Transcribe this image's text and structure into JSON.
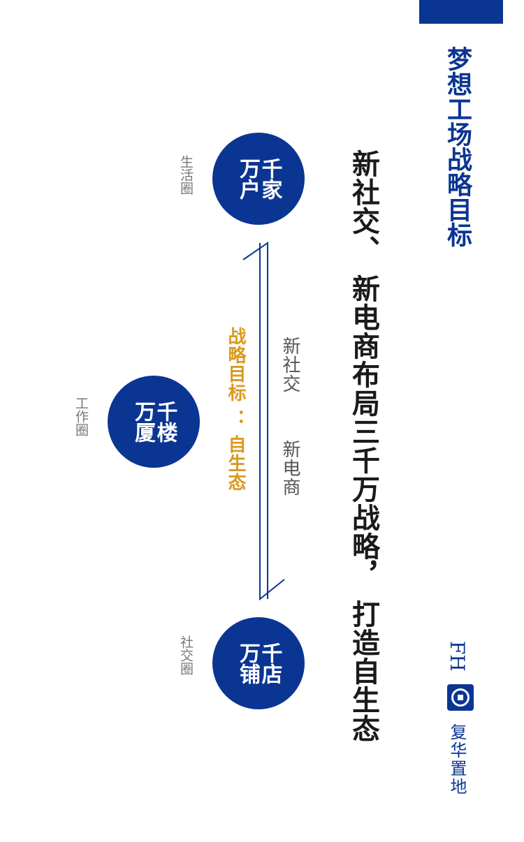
{
  "header": {
    "title": "梦想工场战略目标",
    "subtitle": "新社交、 新电商布局三千万战略， 打造自生态"
  },
  "circles": {
    "top": {
      "label": "千家万户",
      "caption": "生活圈"
    },
    "middle": {
      "label": "千楼万厦",
      "caption": "工作圈"
    },
    "bottom": {
      "label": "千店万铺",
      "caption": "社交圈"
    }
  },
  "arrow": {
    "label_left": "新社交",
    "label_right": "新电商",
    "goal": "战略目标 ： 自生态"
  },
  "logo": {
    "letters": "FH",
    "name": "复华置地"
  },
  "colors": {
    "brand": "#0b3592",
    "goal": "#d99a1f"
  }
}
